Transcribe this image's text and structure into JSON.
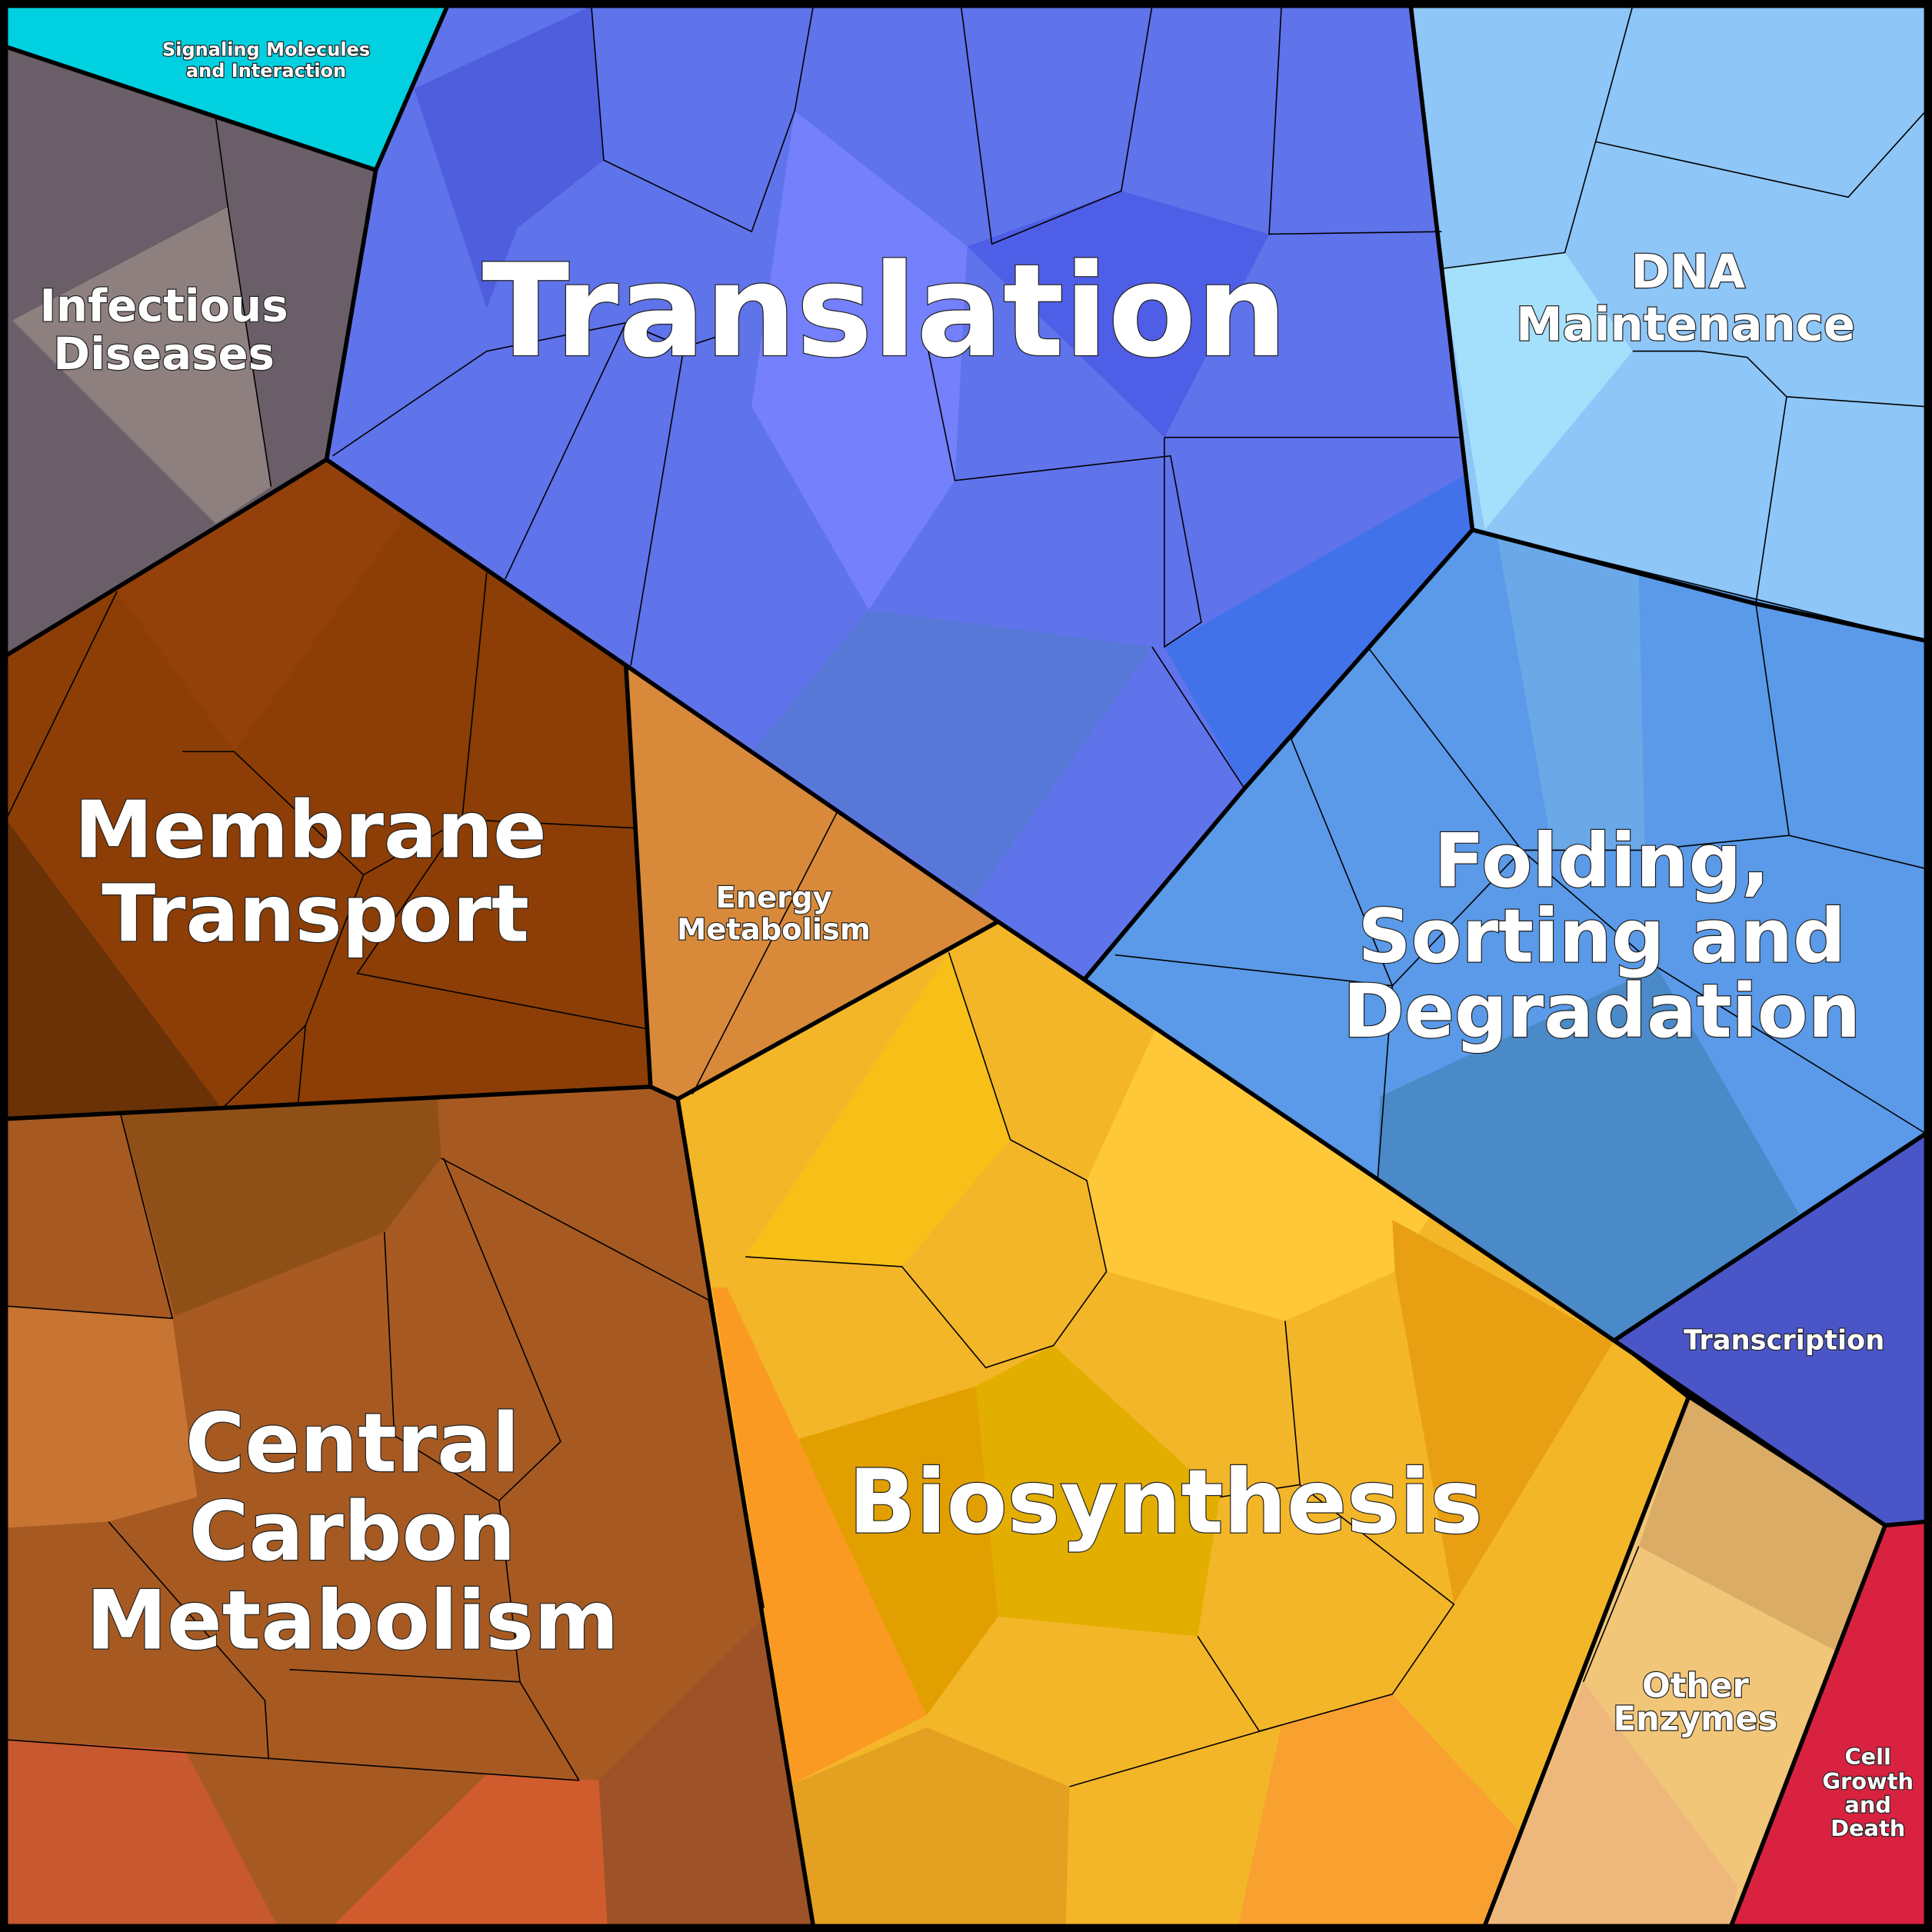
{
  "regions": [
    {
      "label": [
        "Signaling Molecules",
        "and Interaction"
      ]
    },
    {
      "label": [
        "Infectious",
        "Diseases"
      ]
    },
    {
      "label": [
        "Translation"
      ]
    },
    {
      "label": [
        "DNA",
        "Maintenance"
      ]
    },
    {
      "label": [
        "Membrane",
        "Transport"
      ]
    },
    {
      "label": [
        "Energy",
        "Metabolism"
      ]
    },
    {
      "label": [
        "Folding,",
        "Sorting and",
        "Degradation"
      ]
    },
    {
      "label": [
        "Central",
        "Carbon",
        "Metabolism"
      ]
    },
    {
      "label": [
        "Biosynthesis"
      ]
    },
    {
      "label": [
        "Transcription"
      ]
    },
    {
      "label": [
        "Other",
        "Enzymes"
      ]
    },
    {
      "label": [
        "Cell",
        "Growth",
        "and",
        "Death"
      ]
    }
  ]
}
